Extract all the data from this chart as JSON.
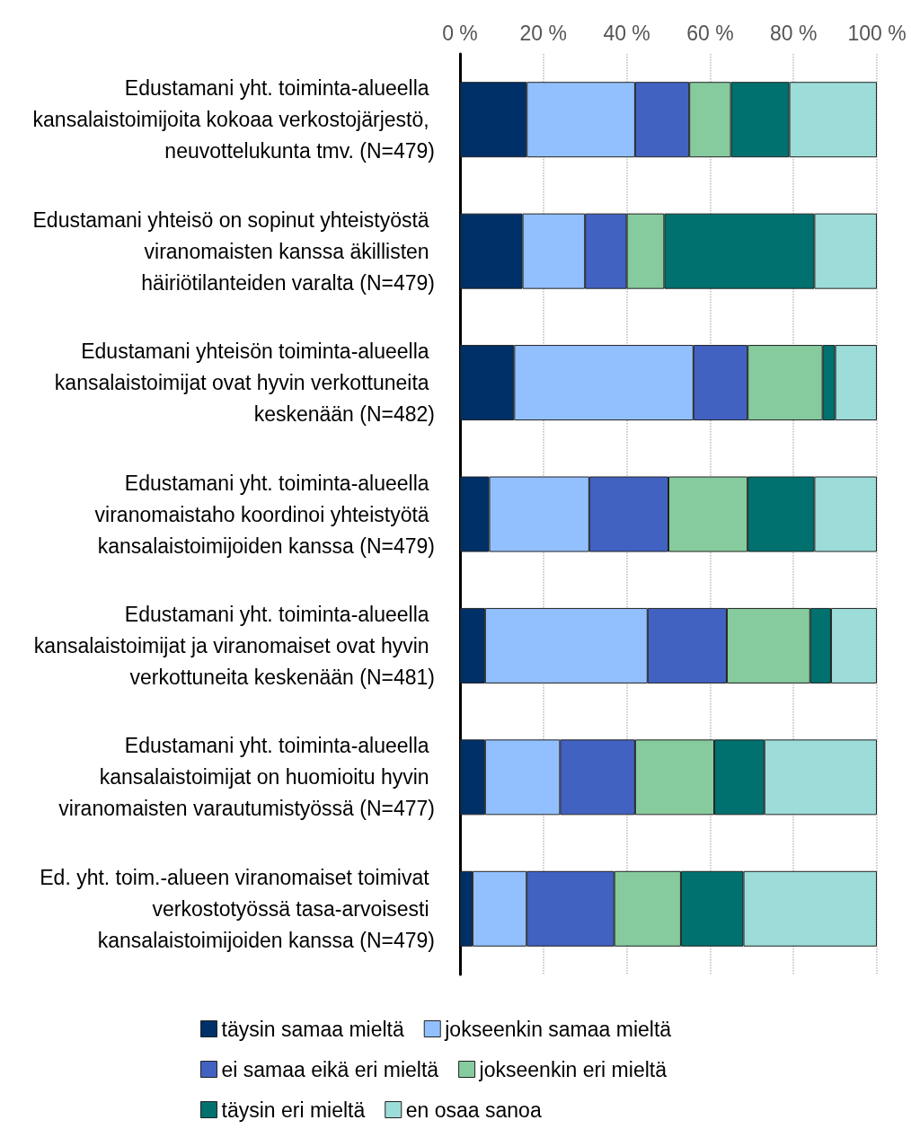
{
  "chart_data": {
    "type": "bar",
    "orientation": "horizontal",
    "stacked": true,
    "categories": [
      "Edustamani yht. toiminta-alueella kansalaistoimijoita kokoaa verkostojärjestö, neuvottelukunta tmv. (N=479)",
      "Edustamani yhteisö on sopinut yhteistyöstä viranomaisten kanssa äkillisten häiriötilanteiden varalta (N=479)",
      "Edustamani yhteisön toiminta-alueella kansalaistoimijat ovat hyvin verkottuneita keskenään (N=482)",
      "Edustamani yht. toiminta-alueella viranomaistaho koordinoi yhteistyötä kansalaistoimijoiden kanssa (N=479)",
      "Edustamani yht. toiminta-alueella kansalaistoimijat ja viranomaiset ovat hyvin verkottuneita keskenään (N=481)",
      "Edustamani yht. toiminta-alueella kansalaistoimijat on huomioitu hyvin viranomaisten varautumistyössä (N=477)",
      "Ed. yht. toim.-alueen viranomaiset toimivat verkostotyössä tasa-arvoisesti kansalaistoimijoiden kanssa (N=479)"
    ],
    "series": [
      {
        "name": "täysin samaa mieltä",
        "color": "#003068",
        "values": [
          16,
          15,
          13,
          7,
          6,
          6,
          3
        ]
      },
      {
        "name": "jokseenkin samaa mieltä",
        "color": "#92c0ff",
        "values": [
          26,
          15,
          43,
          24,
          39,
          18,
          13
        ]
      },
      {
        "name": "ei samaa eikä eri mieltä",
        "color": "#4262c2",
        "values": [
          13,
          10,
          13,
          19,
          19,
          18,
          21
        ]
      },
      {
        "name": "jokseenkin eri mieltä",
        "color": "#86cb9d",
        "values": [
          10,
          9,
          18,
          19,
          20,
          19,
          16
        ]
      },
      {
        "name": "täysin eri mieltä",
        "color": "#00716e",
        "values": [
          14,
          36,
          3,
          16,
          5,
          12,
          15
        ]
      },
      {
        "name": "en osaa sanoa",
        "color": "#9cdcd9",
        "values": [
          21,
          15,
          10,
          15,
          11,
          27,
          32
        ]
      }
    ],
    "xlim": [
      0,
      100
    ],
    "xticks": [
      {
        "value": 0,
        "label": "0 %"
      },
      {
        "value": 20,
        "label": "20 %"
      },
      {
        "value": 40,
        "label": "40 %"
      },
      {
        "value": 60,
        "label": "60 %"
      },
      {
        "value": 80,
        "label": "80 %"
      },
      {
        "value": 100,
        "label": "100 %"
      }
    ],
    "grid": "x",
    "legend": "bottom"
  }
}
